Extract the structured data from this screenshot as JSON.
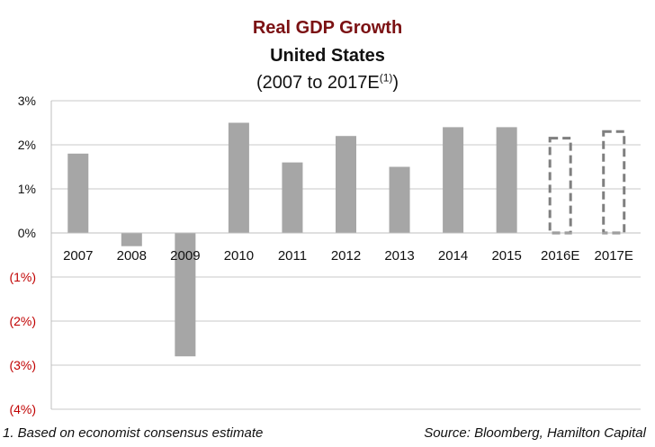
{
  "chart_data": {
    "type": "bar",
    "title": "Real GDP Growth",
    "subtitle": "United States",
    "range_label": "(2007 to 2017E",
    "range_sup": "(1)",
    "range_close": ")",
    "categories": [
      "2007",
      "2008",
      "2009",
      "2010",
      "2011",
      "2012",
      "2013",
      "2014",
      "2015",
      "2016E",
      "2017E"
    ],
    "values": [
      1.8,
      -0.3,
      -2.8,
      2.5,
      1.6,
      2.2,
      1.5,
      2.4,
      2.4,
      2.15,
      2.3
    ],
    "estimated": [
      false,
      false,
      false,
      false,
      false,
      false,
      false,
      false,
      false,
      true,
      true
    ],
    "ylim": [
      -4,
      3
    ],
    "yticks": [
      3,
      2,
      1,
      0,
      -1,
      -2,
      -3,
      -4
    ],
    "ytick_labels": [
      "3%",
      "2%",
      "1%",
      "0%",
      "(1%)",
      "(2%)",
      "(3%)",
      "(4%)"
    ],
    "grid": true,
    "colors": {
      "bar": "#a6a6a6",
      "estimate_outline": "#7f7f7f",
      "title": "#7b1113",
      "negative_label": "#c00000",
      "grid": "#c8c8c8"
    }
  },
  "footnote": "1. Based on economist consensus estimate",
  "source": "Source: Bloomberg, Hamilton Capital"
}
